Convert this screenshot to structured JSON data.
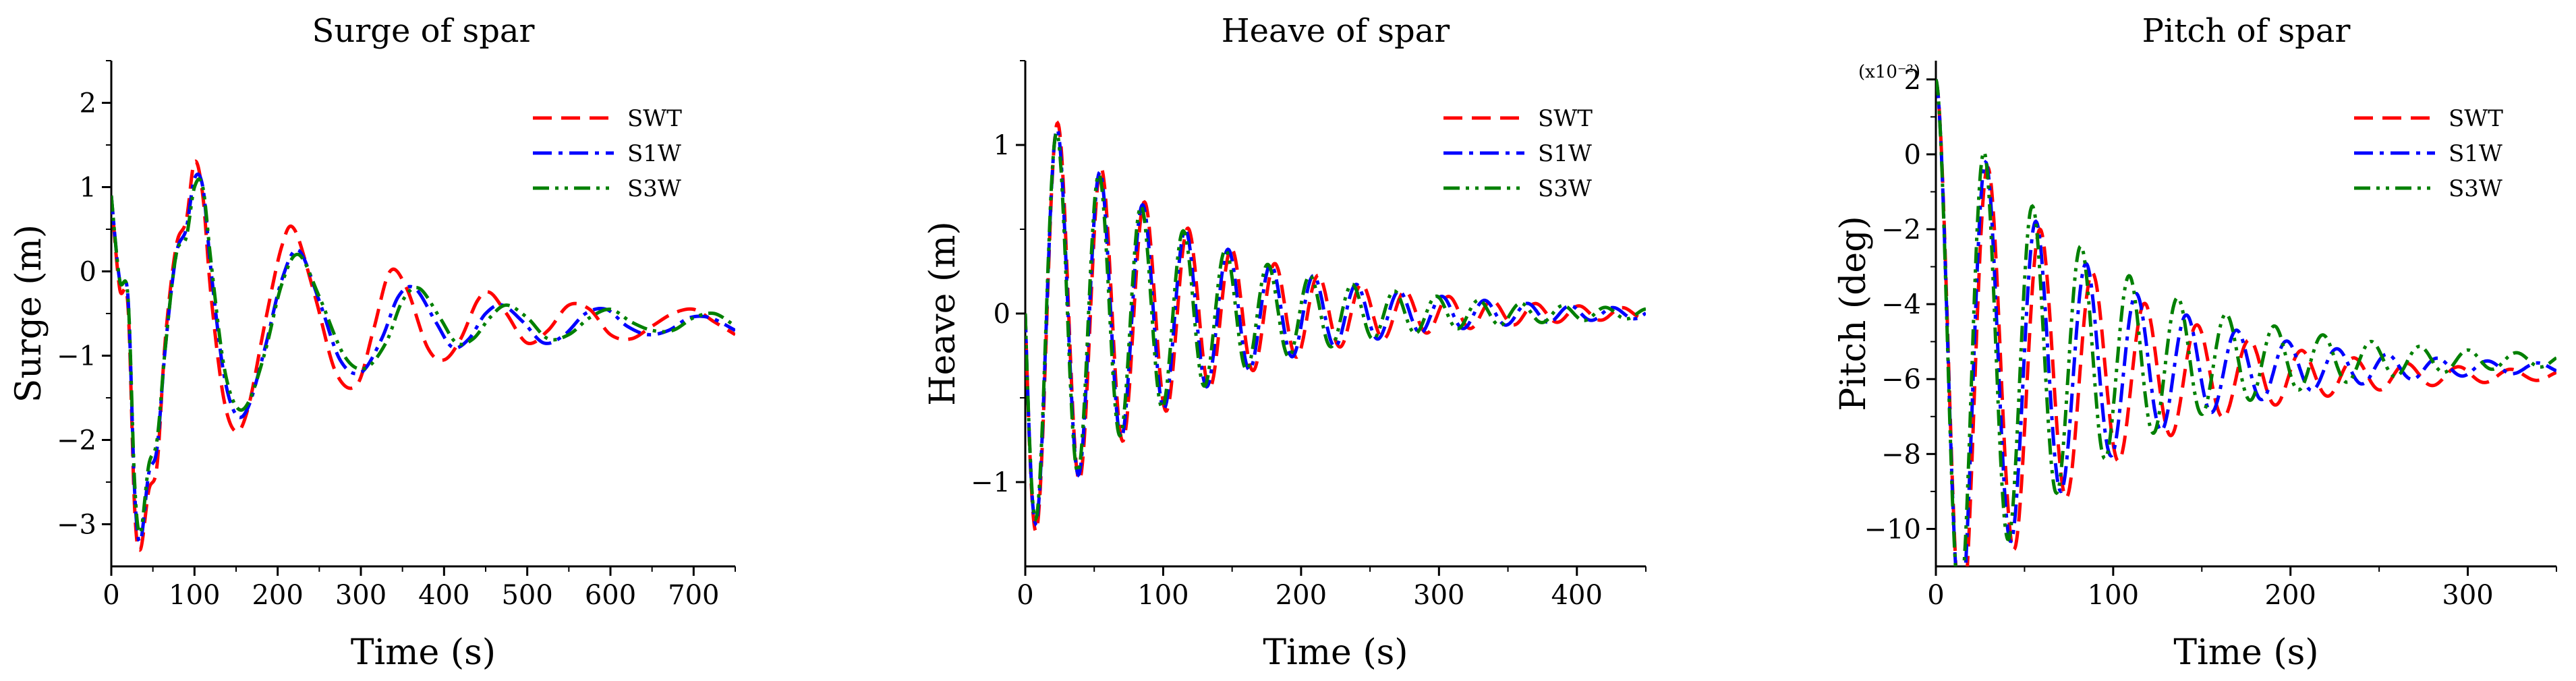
{
  "chart_data": [
    {
      "type": "line",
      "title": "Surge of spar",
      "xlabel": "Time (s)",
      "ylabel": "Surge (m)",
      "xlim": [
        0,
        750
      ],
      "ylim": [
        -3.5,
        2.5
      ],
      "xticks": [
        0,
        100,
        200,
        300,
        400,
        500,
        600,
        700
      ],
      "yticks": [
        -3,
        -2,
        -1,
        0,
        1,
        2
      ],
      "scale_note": "",
      "legend": {
        "position": "top-right"
      },
      "series": [
        {
          "name": "SWT",
          "color": "#ff0000",
          "dash": "dashed",
          "x": [
            0,
            10,
            20,
            28,
            35,
            45,
            55,
            65,
            78,
            90,
            100,
            110,
            120,
            135,
            150,
            165,
            185,
            205,
            220,
            245,
            270,
            295,
            315,
            335,
            355,
            380,
            400,
            420,
            440,
            455,
            475,
            500,
            525,
            550,
            575,
            600,
            625,
            650,
            675,
            700,
            725,
            750
          ],
          "y": [
            0.9,
            -0.2,
            -0.4,
            -2.8,
            -3.3,
            -2.6,
            -2.3,
            -0.8,
            0.3,
            0.6,
            1.3,
            0.9,
            -0.3,
            -1.5,
            -1.9,
            -1.6,
            -0.6,
            0.3,
            0.5,
            -0.3,
            -1.2,
            -1.35,
            -0.7,
            0.0,
            -0.2,
            -0.9,
            -1.05,
            -0.8,
            -0.35,
            -0.25,
            -0.5,
            -0.85,
            -0.7,
            -0.4,
            -0.45,
            -0.75,
            -0.8,
            -0.65,
            -0.5,
            -0.45,
            -0.6,
            -0.75
          ]
        },
        {
          "name": "S1W",
          "color": "#0000ff",
          "dash": "dashdot",
          "x": [
            0,
            10,
            20,
            28,
            35,
            45,
            55,
            65,
            78,
            90,
            100,
            110,
            120,
            135,
            150,
            165,
            185,
            205,
            225,
            250,
            275,
            300,
            325,
            345,
            365,
            390,
            410,
            430,
            450,
            470,
            495,
            520,
            545,
            570,
            595,
            620,
            645,
            670,
            695,
            720,
            750
          ],
          "y": [
            0.9,
            -0.1,
            -0.3,
            -2.6,
            -3.2,
            -2.4,
            -2.1,
            -0.9,
            0.2,
            0.5,
            1.1,
            1.0,
            0.0,
            -1.2,
            -1.7,
            -1.6,
            -0.9,
            -0.1,
            0.25,
            -0.35,
            -1.05,
            -1.2,
            -0.8,
            -0.3,
            -0.2,
            -0.6,
            -0.9,
            -0.8,
            -0.5,
            -0.4,
            -0.6,
            -0.85,
            -0.75,
            -0.5,
            -0.45,
            -0.65,
            -0.75,
            -0.7,
            -0.55,
            -0.55,
            -0.7
          ]
        },
        {
          "name": "S3W",
          "color": "#008000",
          "dash": "dashdotdot",
          "x": [
            0,
            10,
            20,
            28,
            35,
            45,
            55,
            65,
            78,
            90,
            100,
            110,
            120,
            135,
            150,
            165,
            185,
            205,
            225,
            250,
            280,
            305,
            330,
            350,
            370,
            395,
            415,
            435,
            455,
            475,
            500,
            525,
            550,
            575,
            600,
            625,
            650,
            675,
            700,
            725,
            750
          ],
          "y": [
            0.9,
            -0.1,
            -0.3,
            -2.5,
            -3.1,
            -2.3,
            -2.0,
            -0.9,
            0.2,
            0.4,
            1.0,
            1.0,
            0.1,
            -1.1,
            -1.6,
            -1.55,
            -0.95,
            -0.15,
            0.2,
            -0.3,
            -1.0,
            -1.15,
            -0.85,
            -0.35,
            -0.2,
            -0.55,
            -0.85,
            -0.8,
            -0.55,
            -0.4,
            -0.55,
            -0.8,
            -0.75,
            -0.55,
            -0.45,
            -0.6,
            -0.7,
            -0.7,
            -0.55,
            -0.5,
            -0.65
          ]
        }
      ]
    },
    {
      "type": "line",
      "title": "Heave of spar",
      "xlabel": "Time (s)",
      "ylabel": "Heave (m)",
      "xlim": [
        0,
        450
      ],
      "ylim": [
        -1.5,
        1.5
      ],
      "xticks": [
        0,
        100,
        200,
        300,
        400
      ],
      "yticks": [
        -1,
        0,
        1
      ],
      "scale_note": "",
      "legend": {
        "position": "top-right"
      },
      "osc": {
        "period": 31.5,
        "amp": 1.35,
        "decay": 0.0085,
        "phase": 4.71
      },
      "series": [
        {
          "name": "SWT",
          "color": "#ff0000",
          "dash": "dashed",
          "period": 31.5,
          "amp": 1.38
        },
        {
          "name": "S1W",
          "color": "#0000ff",
          "dash": "dashdot",
          "period": 31.0,
          "amp": 1.33
        },
        {
          "name": "S3W",
          "color": "#008000",
          "dash": "dashdotdot",
          "period": 30.6,
          "amp": 1.3
        }
      ]
    },
    {
      "type": "line",
      "title": "Pitch of spar",
      "xlabel": "Time (s)",
      "ylabel": "Pitch (deg)",
      "xlim": [
        0,
        350
      ],
      "ylim": [
        -11,
        2.5
      ],
      "xticks": [
        0,
        100,
        200,
        300
      ],
      "yticks": [
        -10,
        -8,
        -6,
        -4,
        -2,
        0,
        2
      ],
      "scale_note": "(x10⁻²)",
      "legend": {
        "position": "top-right"
      },
      "series": [
        {
          "name": "SWT",
          "color": "#ff0000",
          "dash": "dashed",
          "period": 29.5,
          "amp": 5.2,
          "mean": -5.9,
          "decay": 0.012,
          "start": 2.0
        },
        {
          "name": "S1W",
          "color": "#0000ff",
          "dash": "dashdot",
          "period": 28.3,
          "amp": 5.0,
          "mean": -5.7,
          "decay": 0.012,
          "start": 2.0
        },
        {
          "name": "S3W",
          "color": "#008000",
          "dash": "dashdotdot",
          "period": 27.3,
          "amp": 4.9,
          "mean": -5.5,
          "decay": 0.011,
          "start": 2.0
        }
      ]
    }
  ]
}
